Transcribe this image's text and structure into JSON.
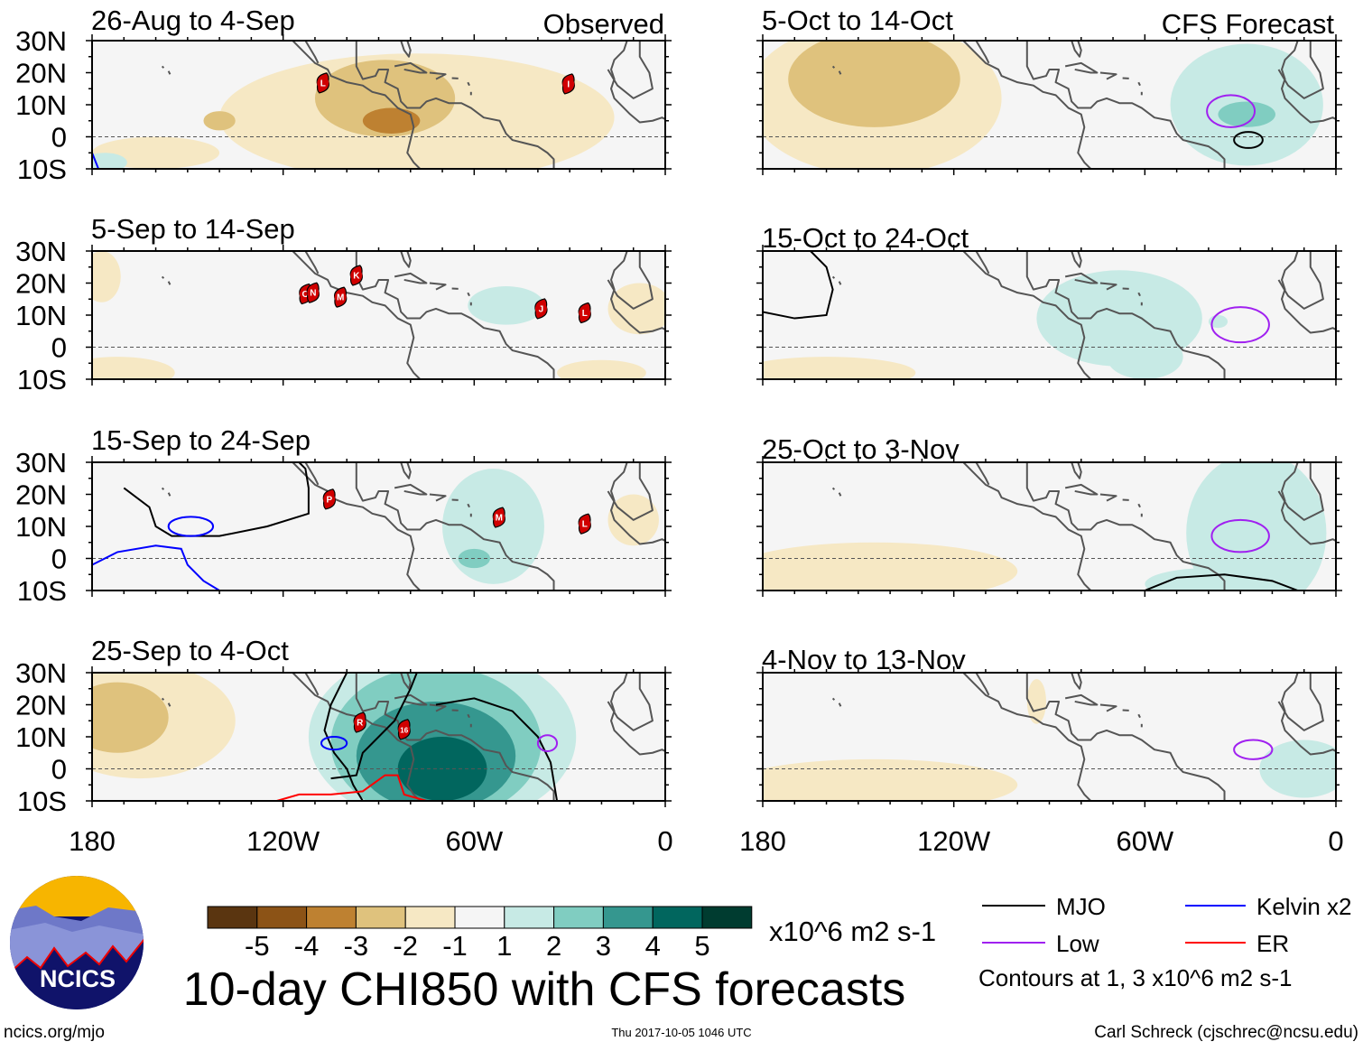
{
  "chart_data": {
    "type": "heatmap",
    "title": "10-day CHI850 with CFS forecasts",
    "colorbar": {
      "unit": "x10^6 m2 s-1",
      "levels": [
        -5,
        -4,
        -3,
        -2,
        -1,
        1,
        2,
        3,
        4,
        5
      ],
      "level_labels": [
        "-5",
        "-4",
        "-3",
        "-2",
        "-1",
        "1",
        "2",
        "3",
        "4",
        "5"
      ],
      "colors": [
        "#5a3510",
        "#8c5316",
        "#be8131",
        "#dfc27d",
        "#f6e8c4",
        "#f5f5f5",
        "#c7eae5",
        "#80cdc1",
        "#35978f",
        "#01665e",
        "#003c30"
      ]
    },
    "lat_ticks": [
      "30N",
      "20N",
      "10N",
      "0",
      "10S"
    ],
    "lat_values": [
      30,
      20,
      10,
      0,
      -10
    ],
    "lon_ticks": [
      "180",
      "120W",
      "60W",
      "0"
    ],
    "lon_values": [
      180,
      120,
      60,
      0
    ],
    "lat_range": [
      -10,
      30
    ],
    "lon_range_west": [
      180,
      0
    ],
    "column_headers": {
      "left": "Observed",
      "right": "CFS Forecast"
    },
    "legend": {
      "items": [
        {
          "label": "MJO",
          "color": "#000000"
        },
        {
          "label": "Kelvin x2",
          "color": "#0000ff"
        },
        {
          "label": "Low",
          "color": "#a020f0"
        },
        {
          "label": "ER",
          "color": "#ff0000"
        }
      ],
      "note": "Contours at 1, 3 x10^6 m2 s-1"
    },
    "panels": [
      {
        "title": "26-Aug to 4-Sep",
        "col": 0,
        "row": 0,
        "fields": [
          {
            "lon": 78,
            "lat": 6,
            "rlon": 62,
            "rlat": 20,
            "v": -1
          },
          {
            "lon": 160,
            "lat": -5,
            "rlon": 20,
            "rlat": 5,
            "v": -1
          },
          {
            "lon": 88,
            "lat": 12,
            "rlon": 22,
            "rlat": 12,
            "v": -2
          },
          {
            "lon": 140,
            "lat": 5,
            "rlon": 5,
            "rlat": 3,
            "v": -2
          },
          {
            "lon": 86,
            "lat": 5,
            "rlon": 9,
            "rlat": 4,
            "v": -3
          },
          {
            "lon": 176,
            "lat": -8,
            "rlon": 7,
            "rlat": 3,
            "v": 1
          }
        ],
        "contours": [
          {
            "type": "Kelvin",
            "pts": [
              [
                180,
                -5
              ],
              [
                178,
                -10
              ]
            ]
          }
        ],
        "storms": [
          {
            "id": "L",
            "lon": 107.5,
            "lat": 16.8
          },
          {
            "id": "I",
            "lon": 30.4,
            "lat": 16.5
          }
        ]
      },
      {
        "title": "5-Sep to 14-Sep",
        "col": 0,
        "row": 1,
        "fields": [
          {
            "lon": 177,
            "lat": 22,
            "rlon": 6,
            "rlat": 8,
            "v": -1
          },
          {
            "lon": 172,
            "lat": -8,
            "rlon": 18,
            "rlat": 5,
            "v": -1
          },
          {
            "lon": 8,
            "lat": 12,
            "rlon": 10,
            "rlat": 8,
            "v": -1
          },
          {
            "lon": 20,
            "lat": -8,
            "rlon": 14,
            "rlat": 4,
            "v": -1
          },
          {
            "lon": 50,
            "lat": 13,
            "rlon": 12,
            "rlat": 6,
            "v": 1
          }
        ],
        "contours": [],
        "storms": [
          {
            "id": "K",
            "lon": 97,
            "lat": 22.4
          },
          {
            "id": "O",
            "lon": 113,
            "lat": 16.6
          },
          {
            "id": "N",
            "lon": 110.6,
            "lat": 17
          },
          {
            "id": "M",
            "lon": 102,
            "lat": 15.6
          },
          {
            "id": "J",
            "lon": 39,
            "lat": 12
          },
          {
            "id": "L",
            "lon": 25.3,
            "lat": 10.7
          }
        ]
      },
      {
        "title": "15-Sep to 24-Sep",
        "col": 0,
        "row": 2,
        "fields": [
          {
            "lon": 54,
            "lat": 10,
            "rlon": 16,
            "rlat": 18,
            "v": 1
          },
          {
            "lon": 60,
            "lat": 0,
            "rlon": 5,
            "rlat": 3,
            "v": 2
          },
          {
            "lon": 10,
            "lat": 12,
            "rlon": 8,
            "rlat": 8,
            "v": -1
          }
        ],
        "contours": [
          {
            "type": "MJO",
            "pts": [
              [
                158,
                30
              ],
              [
                150,
                30
              ]
            ]
          },
          {
            "type": "MJO",
            "pts": [
              [
                170,
                22
              ],
              [
                162,
                16
              ],
              [
                160,
                10
              ],
              [
                155,
                7
              ],
              [
                140,
                7
              ],
              [
                125,
                10
              ],
              [
                112,
                14
              ],
              [
                112,
                22
              ],
              [
                113,
                28
              ],
              [
                115,
                30
              ]
            ]
          },
          {
            "type": "Kelvin",
            "pts": [
              [
                180,
                -2
              ],
              [
                172,
                2
              ],
              [
                160,
                4
              ],
              [
                152,
                3
              ],
              [
                150,
                -2
              ],
              [
                145,
                -7
              ],
              [
                140,
                -10
              ]
            ]
          },
          {
            "type": "Kelvin",
            "ellipse": true,
            "lon": 149,
            "lat": 10,
            "rlon": 7,
            "rlat": 3
          }
        ],
        "storms": [
          {
            "id": "P",
            "lon": 105.5,
            "lat": 18.5
          },
          {
            "id": "M",
            "lon": 52.2,
            "lat": 12.8
          },
          {
            "id": "L",
            "lon": 25.3,
            "lat": 10.8
          }
        ]
      },
      {
        "title": "25-Sep to 4-Oct",
        "col": 0,
        "row": 3,
        "fields": [
          {
            "lon": 165,
            "lat": 15,
            "rlon": 30,
            "rlat": 18,
            "v": -1
          },
          {
            "lon": 172,
            "lat": 16,
            "rlon": 16,
            "rlat": 11,
            "v": -2
          },
          {
            "lon": 70,
            "lat": 10,
            "rlon": 42,
            "rlat": 28,
            "v": 1
          },
          {
            "lon": 72,
            "lat": 8,
            "rlon": 33,
            "rlat": 24,
            "v": 2
          },
          {
            "lon": 72,
            "lat": 4,
            "rlon": 25,
            "rlat": 17,
            "v": 3
          },
          {
            "lon": 70,
            "lat": 0,
            "rlon": 14,
            "rlat": 10,
            "v": 4
          }
        ],
        "contours": [
          {
            "type": "MJO",
            "pts": [
              [
                100,
                30
              ],
              [
                105,
                20
              ],
              [
                107,
                12
              ],
              [
                104,
                5
              ],
              [
                100,
                0
              ],
              [
                98,
                -5
              ],
              [
                95,
                -10
              ]
            ]
          },
          {
            "type": "MJO",
            "pts": [
              [
                105,
                -3
              ],
              [
                97,
                -2
              ],
              [
                95,
                5
              ],
              [
                85,
                15
              ],
              [
                80,
                25
              ],
              [
                78,
                30
              ]
            ]
          },
          {
            "type": "MJO",
            "pts": [
              [
                72,
                20
              ],
              [
                60,
                22
              ],
              [
                48,
                18
              ],
              [
                40,
                10
              ],
              [
                36,
                2
              ],
              [
                34,
                -10
              ]
            ]
          },
          {
            "type": "Kelvin",
            "ellipse": true,
            "lon": 104,
            "lat": 8,
            "rlon": 4,
            "rlat": 2
          },
          {
            "type": "Low",
            "ellipse": true,
            "lon": 37,
            "lat": 8,
            "rlon": 3,
            "rlat": 2.5
          },
          {
            "type": "ER",
            "pts": [
              [
                122,
                -10
              ],
              [
                115,
                -8
              ],
              [
                105,
                -8
              ],
              [
                95,
                -7
              ],
              [
                88,
                -2
              ],
              [
                84,
                -2
              ],
              [
                82,
                -8
              ],
              [
                75,
                -10
              ]
            ]
          }
        ],
        "storms": [
          {
            "id": "R",
            "lon": 95.9,
            "lat": 14.5
          },
          {
            "id": "16",
            "lon": 82,
            "lat": 12.3
          }
        ]
      },
      {
        "title": "5-Oct to 14-Oct",
        "col": 1,
        "row": 0,
        "fields": [
          {
            "lon": 145,
            "lat": 12,
            "rlon": 40,
            "rlat": 24,
            "v": -1
          },
          {
            "lon": 145,
            "lat": 18,
            "rlon": 27,
            "rlat": 15,
            "v": -2
          },
          {
            "lon": 28,
            "lat": 10,
            "rlon": 24,
            "rlat": 19,
            "v": 1
          },
          {
            "lon": 28,
            "lat": 7,
            "rlon": 9,
            "rlat": 4,
            "v": 2
          }
        ],
        "contours": [
          {
            "type": "Low",
            "ellipse": true,
            "lon": 33,
            "lat": 8,
            "rlon": 7.5,
            "rlat": 5
          },
          {
            "type": "MJO",
            "ellipse": true,
            "lon": 27.5,
            "lat": -1,
            "rlon": 4.5,
            "rlat": 2.5
          }
        ],
        "storms": []
      },
      {
        "title": "15-Oct to 24-Oct",
        "col": 1,
        "row": 1,
        "fields": [
          {
            "lon": 68,
            "lat": 9,
            "rlon": 26,
            "rlat": 15,
            "v": 1
          },
          {
            "lon": 60,
            "lat": -3,
            "rlon": 12,
            "rlat": 7,
            "v": 1
          },
          {
            "lon": 37,
            "lat": 8,
            "rlon": 3,
            "rlat": 2,
            "v": 1
          },
          {
            "lon": 160,
            "lat": -8,
            "rlon": 28,
            "rlat": 5,
            "v": -1
          }
        ],
        "contours": [
          {
            "type": "MJO",
            "pts": [
              [
                165,
                30
              ],
              [
                160,
                25
              ],
              [
                158,
                18
              ],
              [
                160,
                10
              ],
              [
                170,
                9
              ],
              [
                180,
                11
              ]
            ]
          },
          {
            "type": "Low",
            "ellipse": true,
            "lon": 30,
            "lat": 7,
            "rlon": 9,
            "rlat": 5.5
          }
        ],
        "storms": []
      },
      {
        "title": "25-Oct to 3-Nov",
        "col": 1,
        "row": 2,
        "fields": [
          {
            "lon": 25,
            "lat": 8,
            "rlon": 22,
            "rlat": 25,
            "v": 1
          },
          {
            "lon": 40,
            "lat": -8,
            "rlon": 20,
            "rlat": 5,
            "v": 1
          },
          {
            "lon": 145,
            "lat": -4,
            "rlon": 45,
            "rlat": 9,
            "v": -1
          }
        ],
        "contours": [
          {
            "type": "Low",
            "ellipse": true,
            "lon": 30,
            "lat": 7,
            "rlon": 9,
            "rlat": 5
          },
          {
            "type": "MJO",
            "pts": [
              [
                60,
                -10
              ],
              [
                50,
                -6
              ],
              [
                35,
                -5
              ],
              [
                20,
                -7
              ],
              [
                12,
                -10
              ]
            ]
          }
        ],
        "storms": []
      },
      {
        "title": "4-Nov to 13-Nov",
        "col": 1,
        "row": 3,
        "fields": [
          {
            "lon": 145,
            "lat": -5,
            "rlon": 45,
            "rlat": 8,
            "v": -1
          },
          {
            "lon": 94,
            "lat": 21,
            "rlon": 3,
            "rlat": 7,
            "v": -1
          },
          {
            "lon": 10,
            "lat": 0,
            "rlon": 14,
            "rlat": 9,
            "v": 1
          }
        ],
        "contours": [
          {
            "type": "Low",
            "ellipse": true,
            "lon": 26,
            "lat": 6,
            "rlon": 6,
            "rlat": 3
          }
        ],
        "storms": []
      }
    ]
  },
  "footer": {
    "logo_text": "NCICS",
    "site": "ncics.org/mjo",
    "timestamp": "Thu 2017-10-05 1046 UTC",
    "author": "Carl Schreck (cjschrec@ncsu.edu)"
  }
}
